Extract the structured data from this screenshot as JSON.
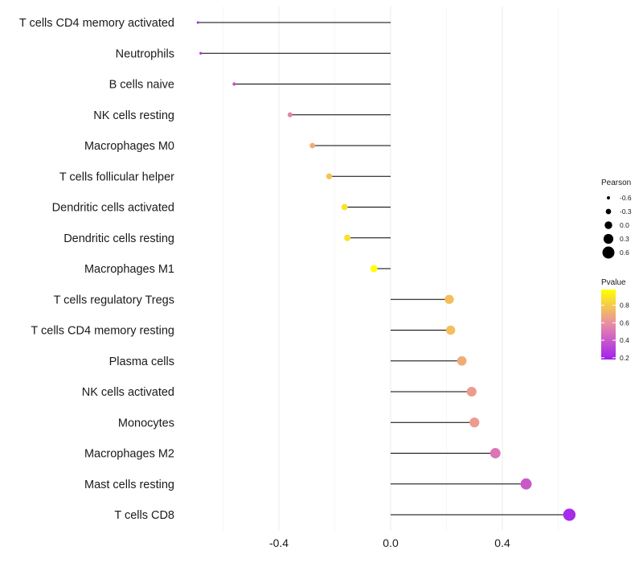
{
  "chart_data": {
    "type": "lollipop",
    "categories": [
      "T cells CD4 memory activated",
      "Neutrophils",
      "B cells naive",
      "NK cells resting",
      "Macrophages M0",
      "T cells follicular helper",
      "Dendritic cells activated",
      "Dendritic cells resting",
      "Macrophages M1",
      "T cells regulatory  Tregs ",
      "T cells CD4 memory resting",
      "Plasma cells",
      "NK cells activated",
      "Monocytes",
      "Macrophages M2",
      "Mast cells resting",
      "T cells CD8"
    ],
    "pearson": [
      -0.69,
      -0.68,
      -0.56,
      -0.36,
      -0.28,
      -0.22,
      -0.165,
      -0.155,
      -0.06,
      0.21,
      0.215,
      0.255,
      0.29,
      0.3,
      0.375,
      0.485,
      0.64
    ],
    "pvalue": [
      0.22,
      0.25,
      0.38,
      0.55,
      0.7,
      0.78,
      0.88,
      0.88,
      0.98,
      0.76,
      0.76,
      0.7,
      0.64,
      0.64,
      0.5,
      0.4,
      0.22
    ],
    "xlim": [
      -0.8,
      0.7
    ],
    "xticks": [
      -0.4,
      0.0,
      0.4
    ],
    "xtick_labels": [
      "-0.4",
      "0.0",
      "0.4"
    ],
    "grid": true,
    "legend_size": {
      "title": "Pearson",
      "values": [
        -0.6,
        -0.3,
        0.0,
        0.3,
        0.6
      ],
      "labels": [
        "-0.6",
        "-0.3",
        "0.0",
        "0.3",
        "0.6"
      ]
    },
    "legend_color": {
      "title": "Pvalue",
      "min": 0.18,
      "max": 0.98,
      "ticks": [
        0.8,
        0.6,
        0.4,
        0.2
      ],
      "labels": [
        "0.8",
        "0.6",
        "0.4",
        "0.2"
      ],
      "low_color": "#a020f0",
      "high_color": "#ffff00"
    }
  }
}
